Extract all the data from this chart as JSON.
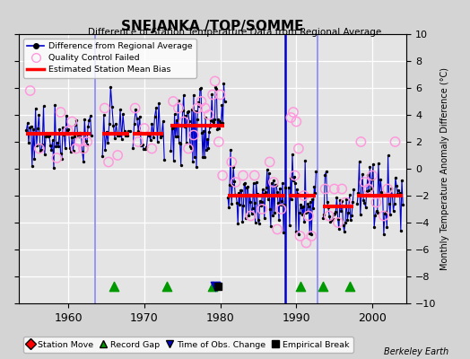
{
  "title": "SNEJANKA /TOP/SOMME",
  "subtitle": "Difference of Station Temperature Data from Regional Average",
  "ylabel": "Monthly Temperature Anomaly Difference (°C)",
  "ylim": [
    -10,
    10
  ],
  "xlim": [
    1953.5,
    2004.5
  ],
  "yticks": [
    -10,
    -8,
    -6,
    -4,
    -2,
    0,
    2,
    4,
    6,
    8,
    10
  ],
  "xticks": [
    1960,
    1970,
    1980,
    1990,
    2000
  ],
  "background_color": "#d4d4d4",
  "plot_bg_color": "#e4e4e4",
  "grid_color": "#ffffff",
  "bias_color": "#ff0000",
  "line_color": "#0000cc",
  "dot_color": "#000000",
  "qc_color": "#ff99dd",
  "bias_lw": 3.0,
  "bias_segments": [
    {
      "x_start": 1954.5,
      "x_end": 1963.0,
      "y": 2.6
    },
    {
      "x_start": 1964.5,
      "x_end": 1968.0,
      "y": 2.6
    },
    {
      "x_start": 1968.5,
      "x_end": 1972.5,
      "y": 2.6
    },
    {
      "x_start": 1973.5,
      "x_end": 1980.5,
      "y": 3.2
    },
    {
      "x_start": 1981.0,
      "x_end": 1988.5,
      "y": -2.0
    },
    {
      "x_start": 1989.0,
      "x_end": 1992.5,
      "y": -2.0
    },
    {
      "x_start": 1993.5,
      "x_end": 1997.5,
      "y": -2.8
    },
    {
      "x_start": 1998.0,
      "x_end": 2004.0,
      "y": -2.0
    }
  ],
  "vlines": [
    {
      "x": 1963.5,
      "color": "#8888ff",
      "lw": 1.2
    },
    {
      "x": 1988.5,
      "color": "#0000cc",
      "lw": 1.8
    },
    {
      "x": 1992.8,
      "color": "#8888ff",
      "lw": 1.2
    }
  ],
  "record_gaps_x": [
    1966,
    1973,
    1979,
    1990.5,
    1993.5,
    1997
  ],
  "obs_changes_x": [
    1979.3
  ],
  "empirical_breaks_x": [
    1979.7
  ],
  "marker_y": -8.7,
  "berkeley_earth": "Berkeley Earth",
  "segments_def": [
    [
      1954.5,
      1963.0,
      2.6,
      1.2,
      0.15
    ],
    [
      1964.5,
      1968.0,
      2.6,
      1.2,
      0.18
    ],
    [
      1968.5,
      1972.5,
      2.6,
      1.2,
      0.18
    ],
    [
      1973.5,
      1980.5,
      3.2,
      1.5,
      0.12
    ],
    [
      1981.0,
      1988.5,
      -2.0,
      1.3,
      0.12
    ],
    [
      1989.0,
      1992.5,
      -2.0,
      1.5,
      0.12
    ],
    [
      1993.5,
      1997.5,
      -2.8,
      1.2,
      0.14
    ],
    [
      1998.0,
      2004.0,
      -2.0,
      1.2,
      0.14
    ]
  ]
}
